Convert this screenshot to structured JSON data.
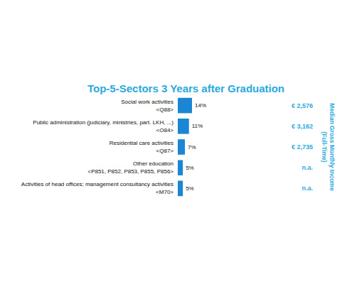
{
  "chart_data": {
    "type": "bar",
    "title": "Top-5-Sectors 3 Years after Graduation",
    "categories": [
      "Social work activities\n<Q88>",
      "Public administration (judiciary, ministries, part. LKH, ...)\n<O84>",
      "Residential care activities\n<Q87>",
      "Other education\n<P851, P852, P853, P855, P856>",
      "Activities of head offices; management consultancy activities\n<M70>"
    ],
    "values": [
      14,
      11,
      7,
      5,
      5
    ],
    "value_labels": [
      "14%",
      "11%",
      "7%",
      "5%",
      "5%"
    ],
    "color": "#1a86d4",
    "orientation": "horizontal",
    "data_labels": true,
    "tick_labels": false,
    "grid": false,
    "income": {
      "label": "Median Gross Monthly Income\n(Full-Time)",
      "values": [
        "€ 2,576",
        "€ 3,162",
        "€ 2,735",
        "n.a.",
        "n.a."
      ]
    }
  }
}
